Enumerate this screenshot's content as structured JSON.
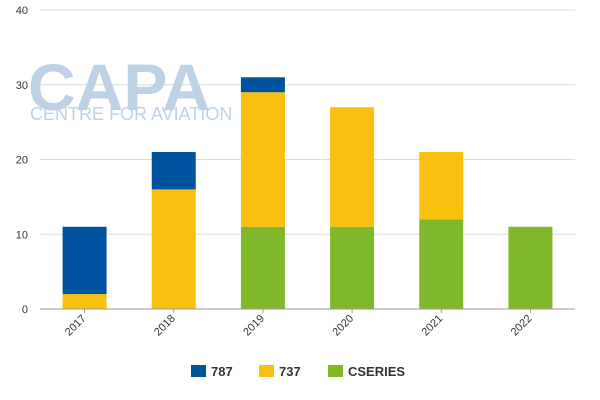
{
  "watermark": {
    "main": "CAPA",
    "sub": "CENTRE FOR AVIATION"
  },
  "chart_data": {
    "type": "bar",
    "stacked": true,
    "categories": [
      "2017",
      "2018",
      "2019",
      "2020",
      "2021",
      "2022"
    ],
    "series": [
      {
        "name": "CSERIES",
        "color": "#7fb82a",
        "values": [
          0,
          0,
          11,
          11,
          12,
          11
        ]
      },
      {
        "name": "737",
        "color": "#f9c00f",
        "values": [
          2,
          16,
          18,
          16,
          9,
          0
        ]
      },
      {
        "name": "787",
        "color": "#00539f",
        "values": [
          9,
          5,
          2,
          0,
          0,
          0
        ]
      }
    ],
    "legend_order": [
      "787",
      "737",
      "CSERIES"
    ],
    "legend_position": "bottom",
    "ylim": [
      0,
      40
    ],
    "yticks": [
      0,
      10,
      20,
      30,
      40
    ],
    "grid": true,
    "title": "",
    "xlabel": "",
    "ylabel": ""
  }
}
